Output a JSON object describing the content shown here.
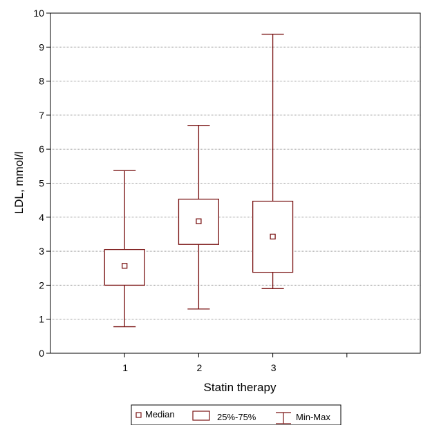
{
  "colors": {
    "box_stroke": "#7a1414",
    "axis": "#000000",
    "grid": "#9a9a9a",
    "background": "#ffffff"
  },
  "chart_data": {
    "type": "box",
    "xlabel": "Statin therapy",
    "ylabel": "LDL, mmol/l",
    "xlim": [
      0,
      5
    ],
    "ylim": [
      0,
      10
    ],
    "yticks": [
      "0",
      "1",
      "2",
      "3",
      "4",
      "5",
      "6",
      "7",
      "8",
      "9",
      "10"
    ],
    "ytick_values": [
      0,
      1,
      2,
      3,
      4,
      5,
      6,
      7,
      8,
      9,
      10
    ],
    "grid": true,
    "categories": [
      "1",
      "2",
      "3"
    ],
    "boxes": [
      {
        "category": "1",
        "min": 0.78,
        "q1": 2.0,
        "median": 2.57,
        "q3": 3.05,
        "max": 5.37
      },
      {
        "category": "2",
        "min": 1.3,
        "q1": 3.2,
        "median": 3.88,
        "q3": 4.53,
        "max": 6.7
      },
      {
        "category": "3",
        "min": 1.9,
        "q1": 2.38,
        "median": 3.43,
        "q3": 4.47,
        "max": 9.38
      }
    ],
    "legend": {
      "placement": "bottom-center",
      "items": [
        {
          "key": "median",
          "label": "Median"
        },
        {
          "key": "iqr",
          "label": "25%-75%"
        },
        {
          "key": "range",
          "label": "Min-Max"
        }
      ]
    }
  }
}
